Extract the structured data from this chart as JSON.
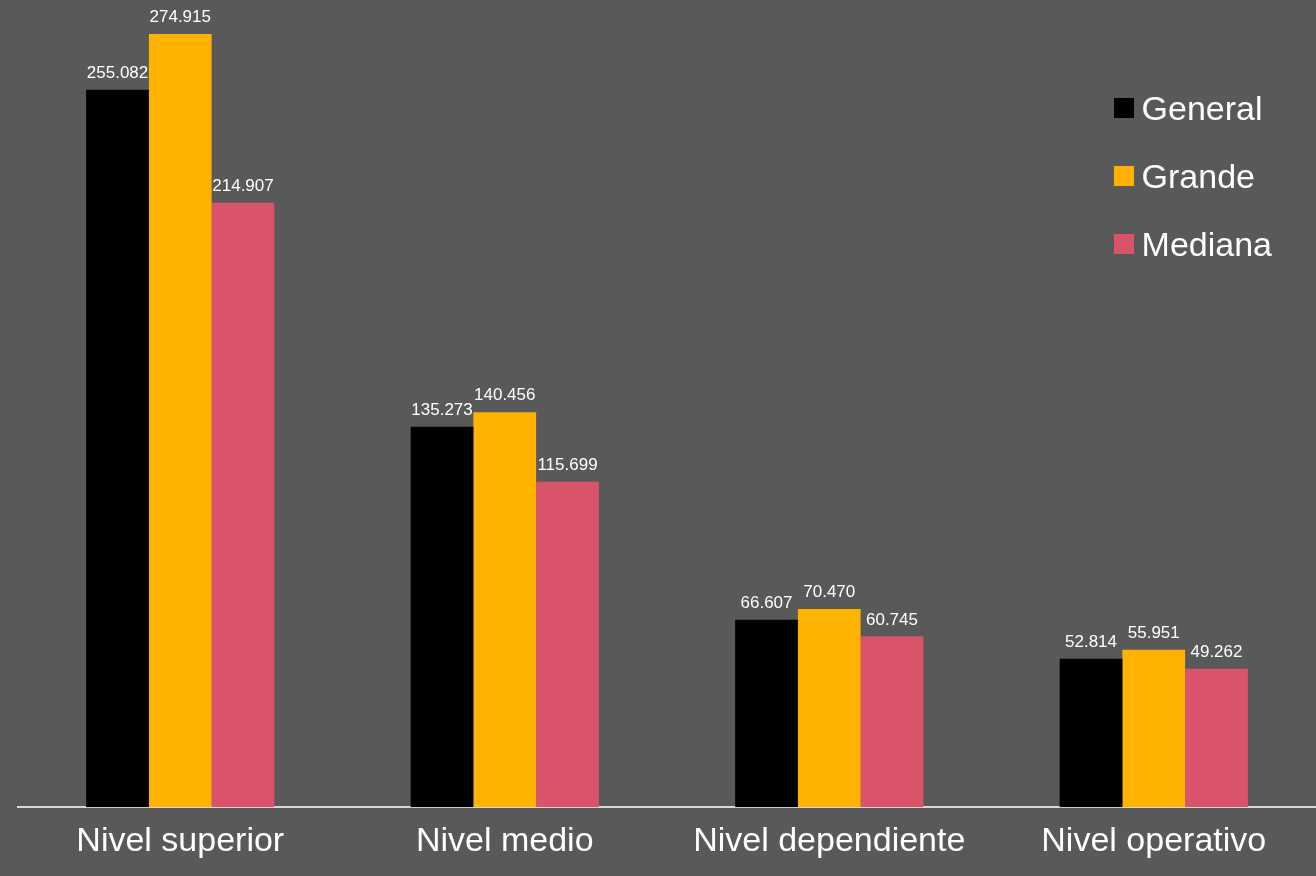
{
  "chart_data": {
    "type": "bar",
    "categories": [
      "Nivel superior",
      "Nivel medio",
      "Nivel dependiente",
      "Nivel operativo"
    ],
    "series": [
      {
        "name": "General",
        "color": "#000000",
        "values": [
          255.082,
          135.273,
          66.607,
          52.814
        ],
        "value_labels": [
          "255.082",
          "135.273",
          "66.607",
          "52.814"
        ]
      },
      {
        "name": "Grande",
        "color": "#ffb300",
        "values": [
          274.915,
          140.456,
          70.47,
          55.951
        ],
        "value_labels": [
          "274.915",
          "140.456",
          "70.470",
          "55.951"
        ]
      },
      {
        "name": "Mediana",
        "color": "#d9546b",
        "values": [
          214.907,
          115.699,
          60.745,
          49.262
        ],
        "value_labels": [
          "214.907",
          "115.699",
          "60.745",
          "49.262"
        ]
      }
    ],
    "tick_labels": "x",
    "grid": false,
    "legend": "top right"
  }
}
